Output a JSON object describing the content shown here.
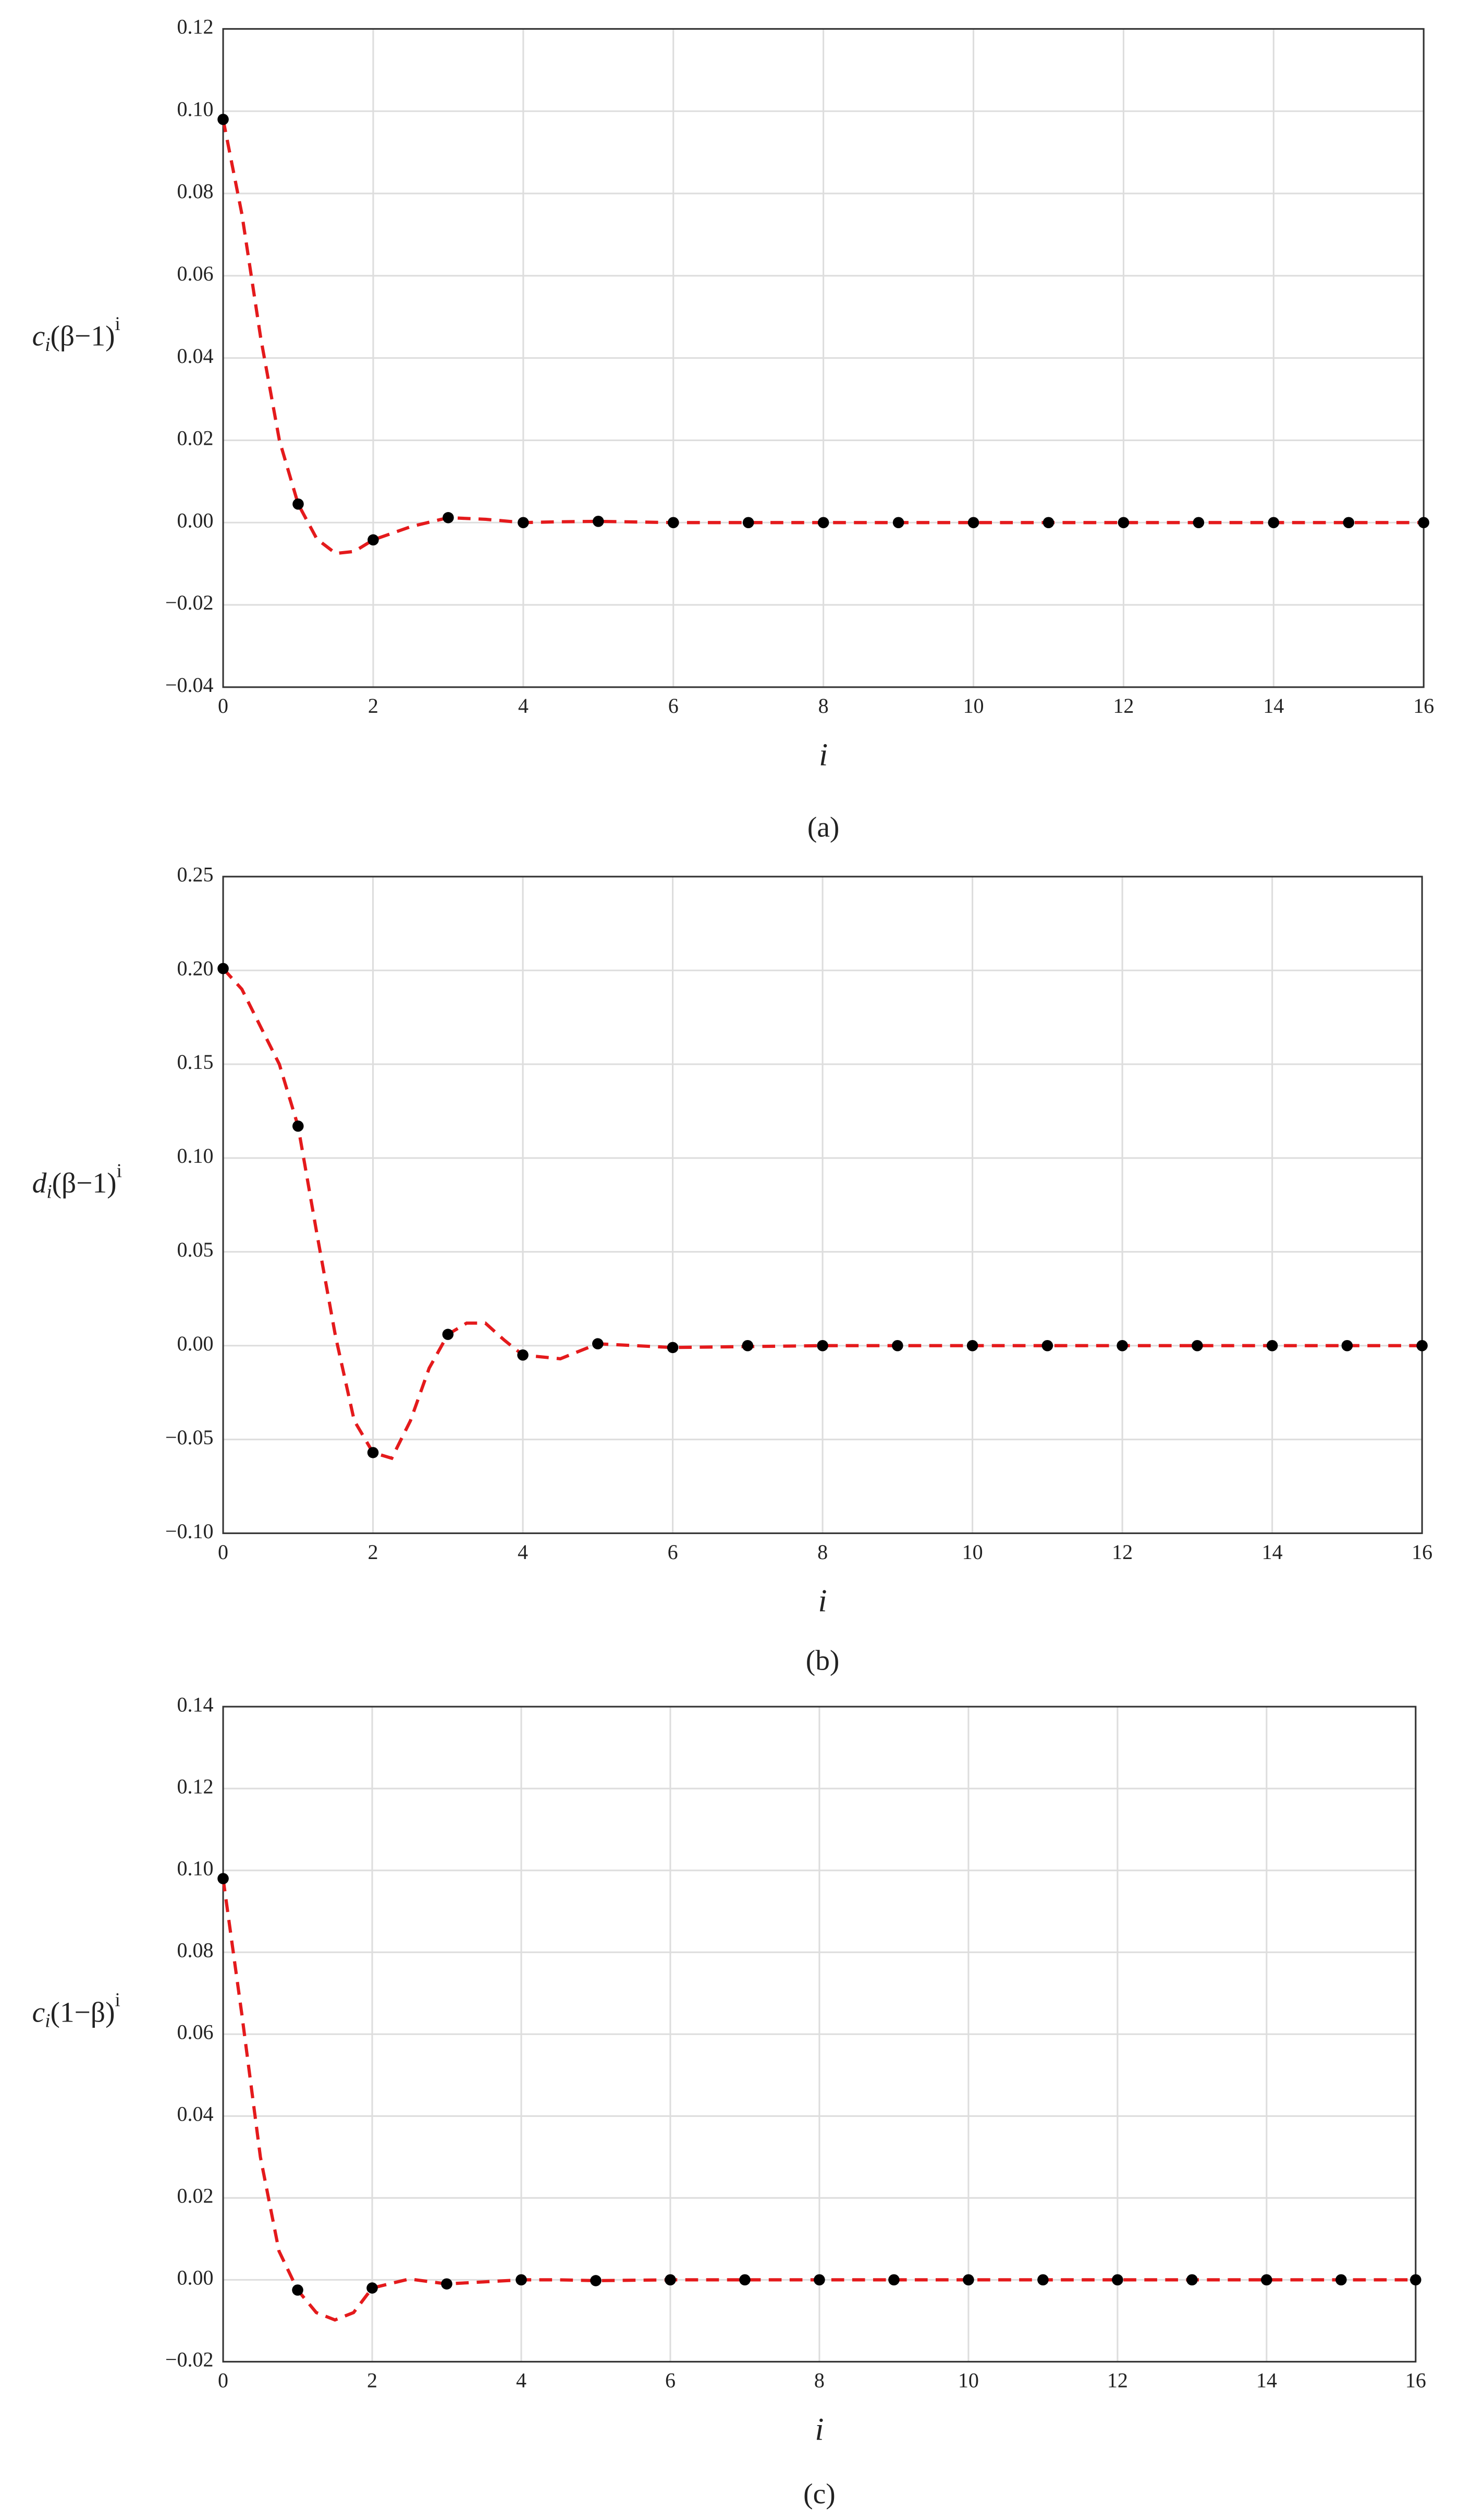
{
  "chart_data": [
    {
      "type": "scatter",
      "caption": "(a)",
      "xlabel": "i",
      "ylabel": {
        "base": "c",
        "sub": "i",
        "main": "(β−1)",
        "sup": "i"
      },
      "xlim": [
        0,
        16
      ],
      "xticks": [
        0,
        2,
        4,
        6,
        8,
        10,
        12,
        14,
        16
      ],
      "ylim": [
        -0.04,
        0.12
      ],
      "yticks": [
        {
          "value": -0.04,
          "label": "−0.04"
        },
        {
          "value": -0.02,
          "label": "−0.02"
        },
        {
          "value": 0,
          "label": "0.00"
        },
        {
          "value": 0.02,
          "label": "0.02"
        },
        {
          "value": 0.04,
          "label": "0.04"
        },
        {
          "value": 0.06,
          "label": "0.06"
        },
        {
          "value": 0.08,
          "label": "0.08"
        },
        {
          "value": 0.1,
          "label": "0.10"
        },
        {
          "value": 0.12,
          "label": "0.12"
        }
      ],
      "grid": true,
      "series": [
        {
          "type": "line",
          "color": "#e41a1c",
          "dashed": true,
          "x": [
            0,
            0.25,
            0.5,
            0.75,
            1,
            1.25,
            1.5,
            1.75,
            2,
            2.5,
            3,
            3.5,
            4,
            4.5,
            5,
            6,
            8,
            10,
            12,
            14,
            16
          ],
          "values": [
            0.098,
            0.075,
            0.045,
            0.02,
            0.0045,
            -0.004,
            -0.0075,
            -0.007,
            -0.0042,
            -0.001,
            0.0012,
            0.0008,
            0,
            0.0002,
            0.0003,
            0,
            0,
            0,
            0,
            0,
            0
          ]
        },
        {
          "type": "scatter",
          "color": "#000000",
          "x": [
            0,
            1,
            2,
            3,
            4,
            5,
            6,
            7,
            8,
            9,
            10,
            11,
            12,
            13,
            14,
            15,
            16
          ],
          "values": [
            0.098,
            0.0045,
            -0.0042,
            0.0012,
            0,
            0.0003,
            0,
            0,
            0,
            0,
            0,
            0,
            0,
            0,
            0,
            0,
            0
          ]
        }
      ]
    },
    {
      "type": "scatter",
      "caption": "(b)",
      "xlabel": "i",
      "ylabel": {
        "base": "d",
        "sub": "i",
        "main": "(β−1)",
        "sup": "i"
      },
      "xlim": [
        0,
        16
      ],
      "xticks": [
        0,
        2,
        4,
        6,
        8,
        10,
        12,
        14,
        16
      ],
      "ylim": [
        -0.1,
        0.25
      ],
      "yticks": [
        {
          "value": -0.1,
          "label": "−0.10"
        },
        {
          "value": -0.05,
          "label": "−0.05"
        },
        {
          "value": 0,
          "label": "0.00"
        },
        {
          "value": 0.05,
          "label": "0.05"
        },
        {
          "value": 0.1,
          "label": "0.10"
        },
        {
          "value": 0.15,
          "label": "0.15"
        },
        {
          "value": 0.2,
          "label": "0.20"
        },
        {
          "value": 0.25,
          "label": "0.25"
        }
      ],
      "grid": true,
      "series": [
        {
          "type": "line",
          "color": "#e41a1c",
          "dashed": true,
          "x": [
            0,
            0.25,
            0.5,
            0.75,
            1,
            1.25,
            1.5,
            1.75,
            2,
            2.25,
            2.5,
            2.75,
            3,
            3.25,
            3.5,
            3.75,
            4,
            4.5,
            5,
            6,
            8,
            10,
            12,
            14,
            16
          ],
          "values": [
            0.201,
            0.19,
            0.17,
            0.15,
            0.117,
            0.06,
            0.005,
            -0.04,
            -0.057,
            -0.06,
            -0.04,
            -0.012,
            0.006,
            0.012,
            0.012,
            0.003,
            -0.005,
            -0.007,
            0.001,
            -0.001,
            0,
            0,
            0,
            0,
            0
          ]
        },
        {
          "type": "scatter",
          "color": "#000000",
          "x": [
            0,
            1,
            2,
            3,
            4,
            5,
            6,
            7,
            8,
            9,
            10,
            11,
            12,
            13,
            14,
            15,
            16
          ],
          "values": [
            0.201,
            0.117,
            -0.057,
            0.006,
            -0.005,
            0.001,
            -0.001,
            0,
            0,
            0,
            0,
            0,
            0,
            0,
            0,
            0,
            0
          ]
        }
      ]
    },
    {
      "type": "scatter",
      "caption": "(c)",
      "xlabel": "i",
      "ylabel": {
        "base": "c",
        "sub": "i",
        "main": "(1−β)",
        "sup": "i"
      },
      "xlim": [
        0,
        16
      ],
      "xticks": [
        0,
        2,
        4,
        6,
        8,
        10,
        12,
        14,
        16
      ],
      "ylim": [
        -0.02,
        0.14
      ],
      "yticks": [
        {
          "value": -0.02,
          "label": "−0.02"
        },
        {
          "value": 0,
          "label": "0.00"
        },
        {
          "value": 0.02,
          "label": "0.02"
        },
        {
          "value": 0.04,
          "label": "0.04"
        },
        {
          "value": 0.06,
          "label": "0.06"
        },
        {
          "value": 0.08,
          "label": "0.08"
        },
        {
          "value": 0.1,
          "label": "0.10"
        },
        {
          "value": 0.12,
          "label": "0.12"
        },
        {
          "value": 0.14,
          "label": "0.14"
        }
      ],
      "grid": true,
      "series": [
        {
          "type": "line",
          "color": "#e41a1c",
          "dashed": true,
          "x": [
            0,
            0.25,
            0.5,
            0.75,
            1,
            1.25,
            1.5,
            1.75,
            2,
            2.5,
            3,
            3.5,
            4,
            4.5,
            5,
            6,
            8,
            10,
            12,
            14,
            16
          ],
          "values": [
            0.098,
            0.065,
            0.03,
            0.007,
            -0.0025,
            -0.008,
            -0.0098,
            -0.008,
            -0.002,
            0.0002,
            -0.001,
            -0.0005,
            0,
            0,
            -0.0002,
            0,
            0,
            0,
            0,
            0,
            0
          ]
        },
        {
          "type": "scatter",
          "color": "#000000",
          "x": [
            0,
            1,
            2,
            3,
            4,
            5,
            6,
            7,
            8,
            9,
            10,
            11,
            12,
            13,
            14,
            15,
            16
          ],
          "values": [
            0.098,
            -0.0025,
            -0.002,
            -0.001,
            0,
            -0.0002,
            0,
            0,
            0,
            0,
            0,
            0,
            0,
            0,
            0,
            0,
            0
          ]
        }
      ]
    }
  ]
}
